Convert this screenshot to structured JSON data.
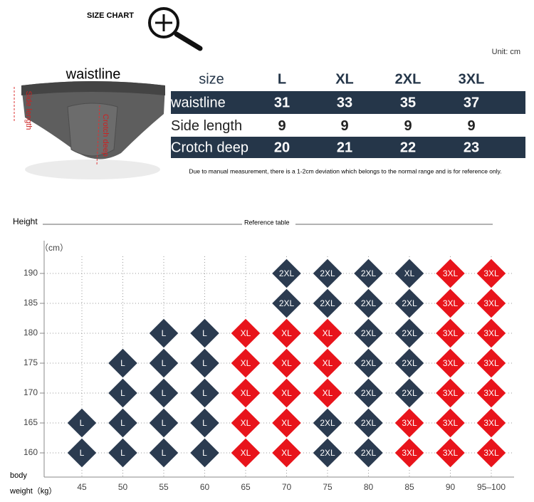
{
  "header": {
    "title": "SIZE CHART",
    "unit": "Unit: cm"
  },
  "product": {
    "label": "waistline",
    "side_label": "Side length",
    "crotch_label": "Crotch deep"
  },
  "size_table": {
    "columns": [
      "size",
      "L",
      "XL",
      "2XL",
      "3XL"
    ],
    "rows": [
      [
        "waistline",
        31,
        33,
        35,
        37
      ],
      [
        "Side length",
        9,
        9,
        9,
        9
      ],
      [
        "Crotch deep",
        20,
        21,
        22,
        23
      ]
    ],
    "row_colors": [
      "#253649",
      "#ffffff",
      "#253649"
    ],
    "note": "Due to manual measurement, there is a 1-2cm deviation which belongs to the normal range and is for reference only."
  },
  "reference": {
    "title": "Reference table",
    "y_title": "Height",
    "y_unit": "（cm）",
    "x_title_1": "body",
    "x_title_2": "weight（kg）",
    "heights": [
      190,
      185,
      180,
      175,
      170,
      165,
      160
    ],
    "weights": [
      45,
      50,
      55,
      60,
      65,
      70,
      75,
      80,
      85,
      90,
      "95–100"
    ],
    "cells": [
      [
        null,
        null,
        null,
        null,
        null,
        "2XL",
        "2XL",
        "2XL",
        "XL",
        "3XL",
        "3XL"
      ],
      [
        null,
        null,
        null,
        null,
        null,
        "2XL",
        "2XL",
        "2XL",
        "2XL",
        "3XL",
        "3XL"
      ],
      [
        null,
        null,
        "L",
        "L",
        "XL",
        "XL",
        "XL",
        "2XL",
        "2XL",
        "3XL",
        "3XL"
      ],
      [
        null,
        "L",
        "L",
        "L",
        "XL",
        "XL",
        "XL",
        "2XL",
        "2XL",
        "3XL",
        "3XL"
      ],
      [
        null,
        "L",
        "L",
        "L",
        "XL",
        "XL",
        "XL",
        "2XL",
        "2XL",
        "3XL",
        "3XL"
      ],
      [
        "L",
        "L",
        "L",
        "L",
        "XL",
        "XL",
        "2XL",
        "2XL",
        "3XL",
        "3XL",
        "3XL"
      ],
      [
        "L",
        "L",
        "L",
        "L",
        "XL",
        "XL",
        "2XL",
        "2XL",
        "3XL",
        "3XL",
        "3XL"
      ]
    ],
    "cell_colors": [
      [
        null,
        null,
        null,
        null,
        null,
        "#2b3b50",
        "#2b3b50",
        "#2b3b50",
        "#2b3b50",
        "#e8141b",
        "#e8141b"
      ],
      [
        null,
        null,
        null,
        null,
        null,
        "#2b3b50",
        "#2b3b50",
        "#2b3b50",
        "#2b3b50",
        "#e8141b",
        "#e8141b"
      ],
      [
        null,
        null,
        "#2b3b50",
        "#2b3b50",
        "#e8141b",
        "#e8141b",
        "#e8141b",
        "#2b3b50",
        "#2b3b50",
        "#e8141b",
        "#e8141b"
      ],
      [
        null,
        "#2b3b50",
        "#2b3b50",
        "#2b3b50",
        "#e8141b",
        "#e8141b",
        "#e8141b",
        "#2b3b50",
        "#2b3b50",
        "#e8141b",
        "#e8141b"
      ],
      [
        null,
        "#2b3b50",
        "#2b3b50",
        "#2b3b50",
        "#e8141b",
        "#e8141b",
        "#e8141b",
        "#2b3b50",
        "#2b3b50",
        "#e8141b",
        "#e8141b"
      ],
      [
        "#2b3b50",
        "#2b3b50",
        "#2b3b50",
        "#2b3b50",
        "#e8141b",
        "#e8141b",
        "#2b3b50",
        "#2b3b50",
        "#e8141b",
        "#e8141b",
        "#e8141b"
      ],
      [
        "#2b3b50",
        "#2b3b50",
        "#2b3b50",
        "#2b3b50",
        "#e8141b",
        "#e8141b",
        "#2b3b50",
        "#2b3b50",
        "#e8141b",
        "#e8141b",
        "#e8141b"
      ]
    ]
  }
}
